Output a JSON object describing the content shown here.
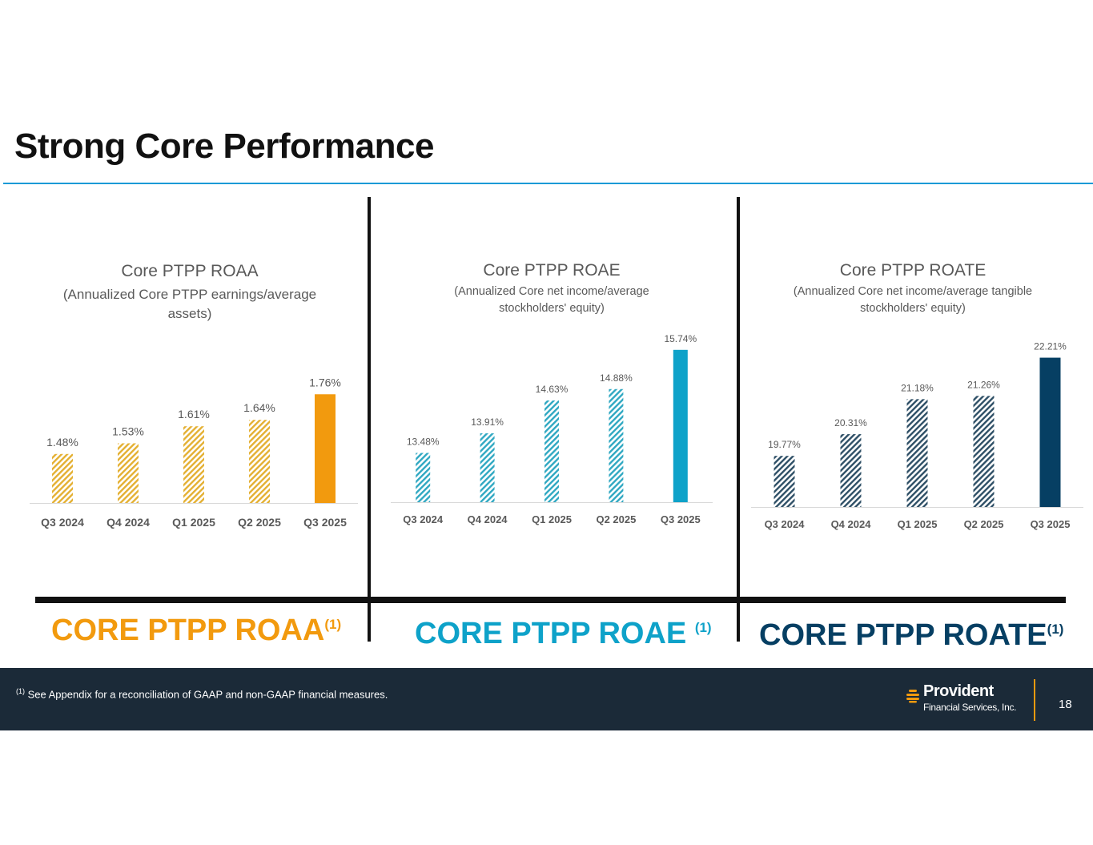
{
  "page_title": "Strong Core Performance",
  "colors": {
    "roaa": "#f29a0e",
    "roaa_hatch": "#e4b032",
    "roae": "#0ea2c9",
    "roae_hatch": "#2fa8c2",
    "roate": "#063f63",
    "roate_hatch": "#2e4f66",
    "footer": "#1b2a38",
    "accent_rule": "#1a9ad6"
  },
  "chart_data": [
    {
      "type": "bar",
      "title": "Core PTPP ROAA",
      "subtitle_lines": [
        "(Annualized Core PTPP earnings/average",
        "assets)"
      ],
      "categories": [
        "Q3 2024",
        "Q4 2024",
        "Q1 2025",
        "Q2 2025",
        "Q3 2025"
      ],
      "values": [
        1.48,
        1.53,
        1.61,
        1.64,
        1.76
      ],
      "labels": [
        "1.48%",
        "1.53%",
        "1.61%",
        "1.64%",
        "1.76%"
      ],
      "ylim": [
        1.25,
        1.9
      ],
      "xlabel": "",
      "ylabel": ""
    },
    {
      "type": "bar",
      "title": "Core PTPP ROAE",
      "subtitle_lines": [
        "(Annualized Core net income/average",
        "stockholders' equity)"
      ],
      "categories": [
        "Q3 2024",
        "Q4 2024",
        "Q1 2025",
        "Q2 2025",
        "Q3 2025"
      ],
      "values": [
        13.48,
        13.91,
        14.63,
        14.88,
        15.74
      ],
      "labels": [
        "13.48%",
        "13.91%",
        "14.63%",
        "14.88%",
        "15.74%"
      ],
      "ylim": [
        12.4,
        16.0
      ],
      "xlabel": "",
      "ylabel": ""
    },
    {
      "type": "bar",
      "title": "Core PTPP ROATE",
      "subtitle_lines": [
        "(Annualized Core net income/average tangible",
        "stockholders' equity)"
      ],
      "categories": [
        "Q3 2024",
        "Q4 2024",
        "Q1 2025",
        "Q2 2025",
        "Q3 2025"
      ],
      "values": [
        19.77,
        20.31,
        21.18,
        21.26,
        22.21
      ],
      "labels": [
        "19.77%",
        "20.31%",
        "21.18%",
        "21.26%",
        "22.21%"
      ],
      "ylim": [
        18.5,
        22.5
      ],
      "xlabel": "",
      "ylabel": ""
    }
  ],
  "captions": {
    "roaa": {
      "text": "CORE PTPP ROAA",
      "sup": "(1)"
    },
    "roae": {
      "text": "CORE PTPP ROAE ",
      "sup": "(1)"
    },
    "roate": {
      "text": "CORE PTPP ROATE",
      "sup": "(1)"
    }
  },
  "footer": {
    "footnote_sup": "(1)",
    "footnote": " See Appendix for a reconciliation of GAAP and non-GAAP financial measures.",
    "logo_name": "Provident",
    "logo_sub": "Financial Services, Inc.",
    "page_number": "18"
  }
}
